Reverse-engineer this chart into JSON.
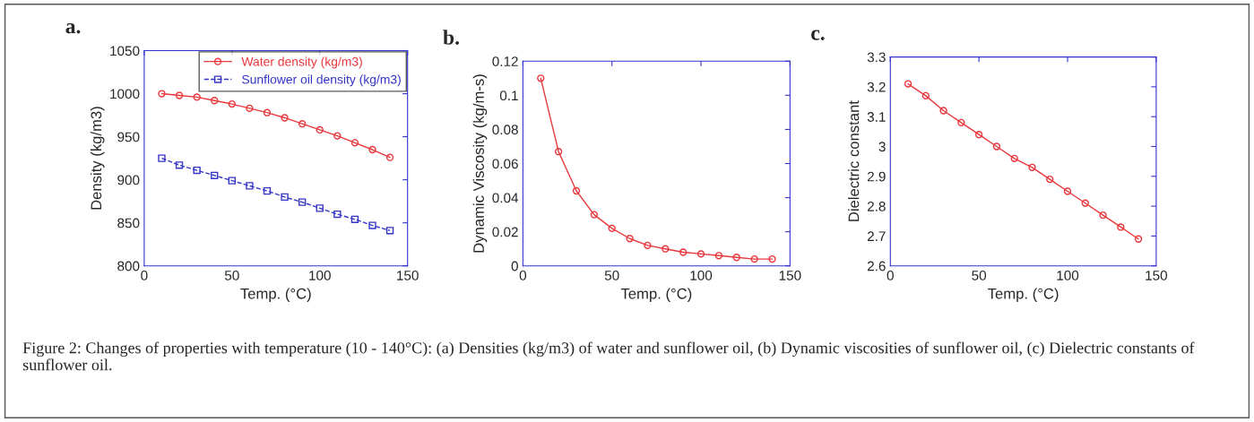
{
  "chart_data": [
    {
      "type": "line",
      "title": "a.",
      "xlabel": "Temp. (°C)",
      "ylabel": "Density (kg/m3)",
      "x": [
        10,
        20,
        30,
        40,
        50,
        60,
        70,
        80,
        90,
        100,
        110,
        120,
        130,
        140
      ],
      "series": [
        {
          "name": "Water density (kg/m3)",
          "color": "#e8383d",
          "marker": "circle",
          "line_style": "solid",
          "values": [
            1000,
            998,
            996,
            992,
            988,
            983,
            978,
            972,
            965,
            958,
            951,
            943,
            935,
            926
          ]
        },
        {
          "name": "Sunflower oil density (kg/m3)",
          "color": "#3434c8",
          "marker": "square",
          "line_style": "dashed",
          "values": [
            925,
            917,
            911,
            905,
            899,
            893,
            887,
            880,
            874,
            867,
            860,
            854,
            847,
            841
          ]
        }
      ],
      "xlim": [
        0,
        150
      ],
      "xticks": [
        0,
        50,
        100,
        150
      ],
      "ylim": [
        800,
        1050
      ],
      "yticks": [
        800,
        850,
        900,
        950,
        1000,
        1050
      ],
      "grid": false,
      "legend": "top right",
      "annotations": [
        "Figure 2: Changes of properties with temperature (10 - 140°C): (a) Densities (kg/m3) of water and sunflower oil, (b) Dynamic viscosities of sunflower oil, (c) Dielectric constants of sunflower oil."
      ]
    },
    {
      "type": "line",
      "title": "b.",
      "xlabel": "Temp. (°C)",
      "ylabel": "Dynamic Viscosity (kg/m-s)",
      "x": [
        10,
        20,
        30,
        40,
        50,
        60,
        70,
        80,
        90,
        100,
        110,
        120,
        130,
        140
      ],
      "series": [
        {
          "color": "#e8383d",
          "marker": "circle",
          "line_style": "solid",
          "values": [
            0.11,
            0.067,
            0.044,
            0.03,
            0.022,
            0.016,
            0.012,
            0.01,
            0.008,
            0.007,
            0.006,
            0.005,
            0.004,
            0.004
          ]
        }
      ],
      "xlim": [
        0,
        150
      ],
      "xticks": [
        0,
        50,
        100,
        150
      ],
      "ylim": [
        0,
        0.12
      ],
      "yticks": [
        0,
        0.02,
        0.04,
        0.06,
        0.08,
        0.1,
        0.12
      ],
      "grid": false,
      "legend": false
    },
    {
      "type": "line",
      "title": "c.",
      "xlabel": "Temp. (°C)",
      "ylabel": "Dielectric constant",
      "x": [
        10,
        20,
        30,
        40,
        50,
        60,
        70,
        80,
        90,
        100,
        110,
        120,
        130,
        140
      ],
      "series": [
        {
          "color": "#e8383d",
          "marker": "circle",
          "line_style": "solid",
          "values": [
            3.21,
            3.17,
            3.12,
            3.08,
            3.04,
            3.0,
            2.96,
            2.93,
            2.89,
            2.85,
            2.81,
            2.77,
            2.73,
            2.69
          ]
        }
      ],
      "xlim": [
        0,
        150
      ],
      "xticks": [
        0,
        50,
        100,
        150
      ],
      "ylim": [
        2.6,
        3.3
      ],
      "yticks": [
        2.6,
        2.7,
        2.8,
        2.9,
        3,
        3.1,
        3.2,
        3.3
      ],
      "grid": false,
      "legend": false
    }
  ]
}
